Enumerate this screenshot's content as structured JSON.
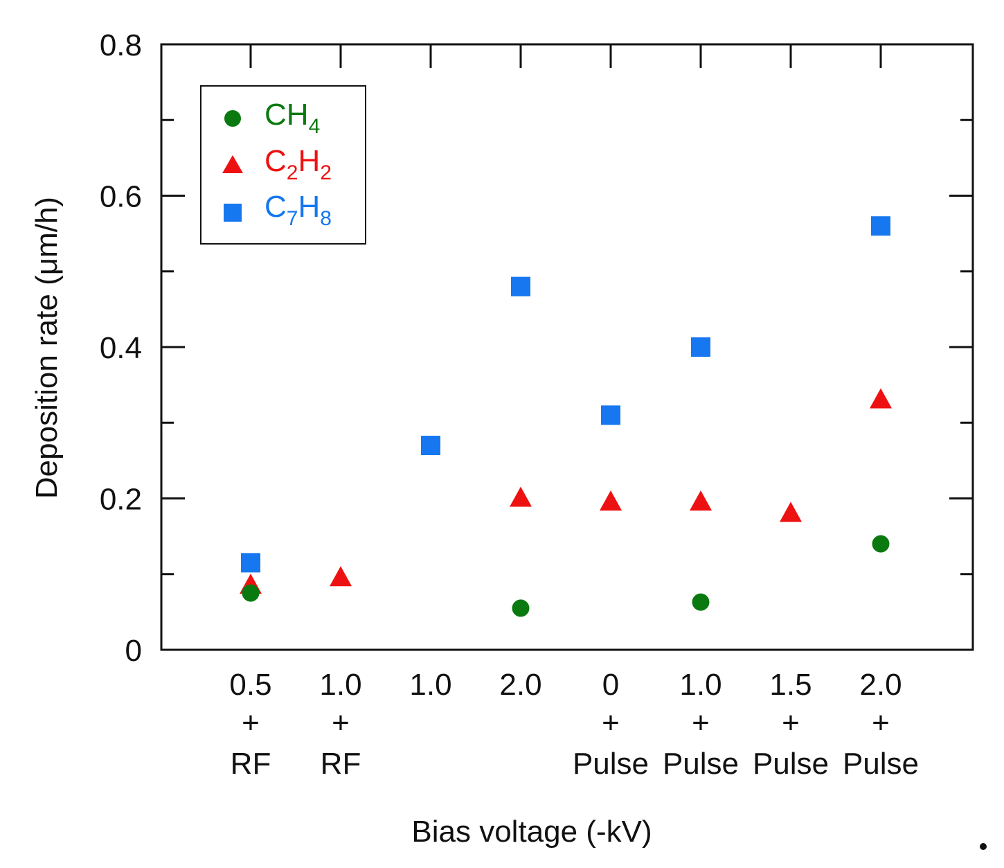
{
  "chart_data": {
    "type": "scatter",
    "ylabel": "Deposition rate (μm/h)",
    "xlabel": "Bias voltage (-kV)",
    "ylim": [
      0,
      0.8
    ],
    "y_ticks": [
      0,
      0.2,
      0.4,
      0.6,
      0.8
    ],
    "y_tick_labels": [
      "0",
      "0.2",
      "0.4",
      "0.6",
      "0.8"
    ],
    "y_minor_ticks": [
      0.1,
      0.3,
      0.5,
      0.7
    ],
    "categories": [
      {
        "value": "0.5",
        "plus": "+",
        "mode": "RF"
      },
      {
        "value": "1.0",
        "plus": "+",
        "mode": "RF"
      },
      {
        "value": "1.0",
        "plus": "",
        "mode": ""
      },
      {
        "value": "2.0",
        "plus": "",
        "mode": ""
      },
      {
        "value": "0",
        "plus": "+",
        "mode": "Pulse"
      },
      {
        "value": "1.0",
        "plus": "+",
        "mode": "Pulse"
      },
      {
        "value": "1.5",
        "plus": "+",
        "mode": "Pulse"
      },
      {
        "value": "2.0",
        "plus": "+",
        "mode": "Pulse"
      }
    ],
    "series": [
      {
        "name": "CH4",
        "label_main": "CH",
        "label_sub": "4",
        "marker": "circle",
        "color": "#0a7a10",
        "values": [
          0.075,
          null,
          null,
          0.055,
          null,
          0.063,
          null,
          0.14
        ]
      },
      {
        "name": "C2H2",
        "label_parts": [
          "C",
          "2",
          "H",
          "2"
        ],
        "marker": "triangle",
        "color": "#ee1111",
        "values": [
          0.085,
          0.095,
          null,
          0.2,
          0.195,
          0.195,
          0.18,
          0.33
        ]
      },
      {
        "name": "C7H8",
        "label_parts": [
          "C",
          "7",
          "H",
          "8"
        ],
        "marker": "square",
        "color": "#1677f0",
        "values": [
          0.115,
          null,
          0.27,
          0.48,
          0.31,
          0.4,
          null,
          0.56
        ]
      }
    ],
    "legend": {
      "position": "top-left"
    },
    "grid": false
  }
}
